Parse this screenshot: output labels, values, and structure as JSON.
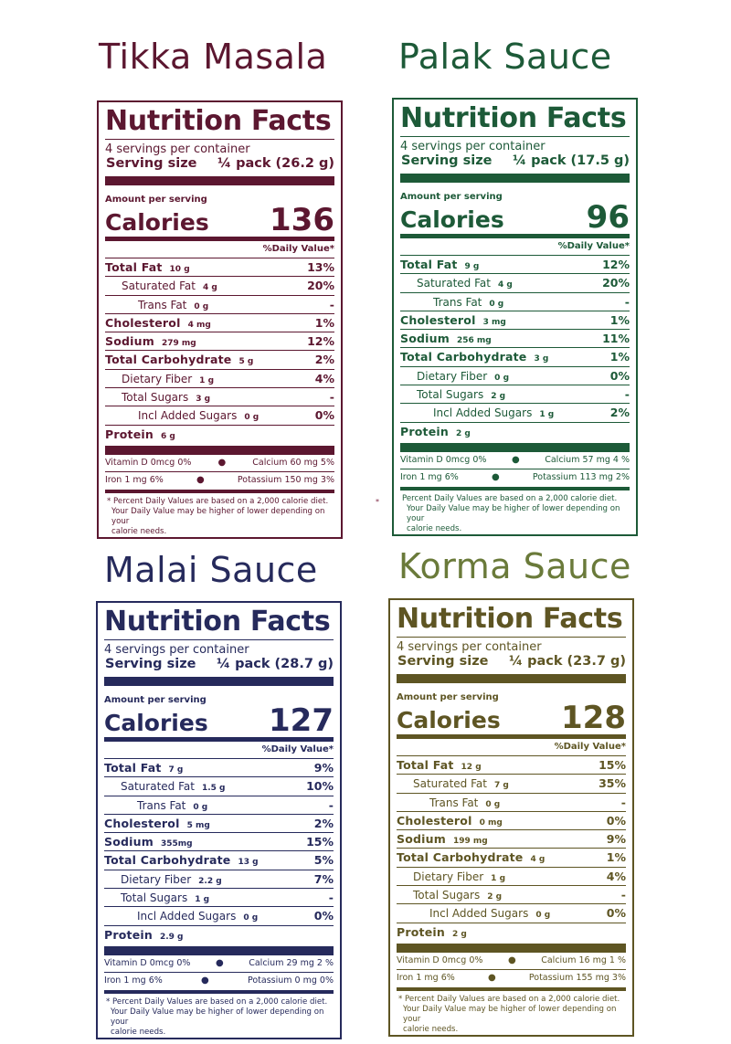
{
  "labels": [
    {
      "title": "Tikka Masala",
      "color": "#5c1730",
      "heading": "Nutrition Facts",
      "servings": "4 servings per container",
      "serving_size_label": "Serving size",
      "serving_size_value": "¼ pack (26.2 g)",
      "amount_per_serving": "Amount per serving",
      "calories_label": "Calories",
      "calories": "136",
      "daily_value_head": "%Daily Value*",
      "rows": [
        {
          "name": "Total Fat",
          "amount": "10 g",
          "pct": "13%"
        },
        {
          "name": "Saturated Fat",
          "amount": "4 g",
          "pct": "20%"
        },
        {
          "name": "Trans Fat",
          "amount": "0 g",
          "pct": "-"
        },
        {
          "name": "Cholesterol",
          "amount": "4 mg",
          "pct": "1%"
        },
        {
          "name": "Sodium",
          "amount": "279 mg",
          "pct": "12%"
        },
        {
          "name": "Total Carbohydrate",
          "amount": "5 g",
          "pct": "2%"
        },
        {
          "name": "Dietary Fiber",
          "amount": "1 g",
          "pct": "4%"
        },
        {
          "name": "Total Sugars",
          "amount": "3 g",
          "pct": "-"
        },
        {
          "name": "Incl Added Sugars",
          "amount": "0 g",
          "pct": "0%"
        },
        {
          "name": "Protein",
          "amount": "6 g",
          "pct": ""
        }
      ],
      "vit_d": "Vitamin D 0mcg 0%",
      "calcium": "Calcium 60 mg 5%",
      "iron": "Iron 1 mg 6%",
      "potassium": "Potassium 150 mg 3%",
      "footnote_1": "* Percent Daily Values are  based on a 2,000 calorie diet.",
      "footnote_2": "Your Daily Value may be higher of lower depending on your",
      "footnote_3": "calorie needs."
    },
    {
      "title": "Palak Sauce",
      "color": "#1d5a38",
      "heading": "Nutrition Facts",
      "servings": "4 servings per container",
      "serving_size_label": "Serving size",
      "serving_size_value": "¼ pack (17.5 g)",
      "amount_per_serving": "Amount per serving",
      "calories_label": "Calories",
      "calories": "96",
      "daily_value_head": "%Daily Value*",
      "rows": [
        {
          "name": "Total Fat",
          "amount": "9 g",
          "pct": "12%"
        },
        {
          "name": "Saturated Fat",
          "amount": "4 g",
          "pct": "20%"
        },
        {
          "name": "Trans Fat",
          "amount": "0 g",
          "pct": "-"
        },
        {
          "name": "Cholesterol",
          "amount": "3 mg",
          "pct": "1%"
        },
        {
          "name": "Sodium",
          "amount": "256 mg",
          "pct": "11%"
        },
        {
          "name": "Total Carbohydrate",
          "amount": "3 g",
          "pct": "1%"
        },
        {
          "name": "Dietary Fiber",
          "amount": "0 g",
          "pct": "0%"
        },
        {
          "name": "Total Sugars",
          "amount": "2 g",
          "pct": "-"
        },
        {
          "name": "Incl Added Sugars",
          "amount": "1 g",
          "pct": "2%"
        },
        {
          "name": "Protein",
          "amount": "2 g",
          "pct": ""
        }
      ],
      "vit_d": "Vitamin D 0mcg 0%",
      "calcium": "Calcium 57 mg 4 %",
      "iron": "Iron 1 mg 6%",
      "potassium": "Potassium 113 mg 2%",
      "footnote_1": "Percent Daily Values are  based on a 2,000 calorie diet.",
      "footnote_2": "Your Daily Value may be higher of lower depending on your",
      "footnote_3": "calorie needs."
    },
    {
      "title": "Malai Sauce",
      "color": "#262a5c",
      "heading": "Nutrition Facts",
      "servings": "4 servings per container",
      "serving_size_label": "Serving size",
      "serving_size_value": "¼ pack (28.7 g)",
      "amount_per_serving": "Amount per serving",
      "calories_label": "Calories",
      "calories": "127",
      "daily_value_head": "%Daily Value*",
      "rows": [
        {
          "name": "Total Fat",
          "amount": "7 g",
          "pct": "9%"
        },
        {
          "name": "Saturated Fat",
          "amount": "1.5 g",
          "pct": "10%"
        },
        {
          "name": "Trans Fat",
          "amount": "0 g",
          "pct": "-"
        },
        {
          "name": "Cholesterol",
          "amount": "5 mg",
          "pct": "2%"
        },
        {
          "name": "Sodium",
          "amount": "355mg",
          "pct": "15%"
        },
        {
          "name": "Total Carbohydrate",
          "amount": "13 g",
          "pct": "5%"
        },
        {
          "name": "Dietary Fiber",
          "amount": "2.2 g",
          "pct": "7%"
        },
        {
          "name": "Total Sugars",
          "amount": "1 g",
          "pct": "-"
        },
        {
          "name": "Incl Added Sugars",
          "amount": "0 g",
          "pct": "0%"
        },
        {
          "name": "Protein",
          "amount": "2.9 g",
          "pct": ""
        }
      ],
      "vit_d": "Vitamin D 0mcg 0%",
      "calcium": "Calcium 29 mg 2 %",
      "iron": "Iron 1 mg 6%",
      "potassium": "Potassium 0 mg 0%",
      "footnote_1": "* Percent Daily Values are  based on a 2,000 calorie diet.",
      "footnote_2": "Your Daily Value may be higher of lower depending on your",
      "footnote_3": "calorie needs."
    },
    {
      "title": "Korma Sauce",
      "color": "#5e5523",
      "title_color": "#6a7a3a",
      "heading": "Nutrition Facts",
      "servings": "4 servings per container",
      "serving_size_label": "Serving size",
      "serving_size_value": "¼ pack (23.7 g)",
      "amount_per_serving": "Amount per serving",
      "calories_label": "Calories",
      "calories": "128",
      "daily_value_head": "%Daily Value*",
      "rows": [
        {
          "name": "Total Fat",
          "amount": "12 g",
          "pct": "15%"
        },
        {
          "name": "Saturated Fat",
          "amount": "7 g",
          "pct": "35%"
        },
        {
          "name": "Trans Fat",
          "amount": "0 g",
          "pct": "-"
        },
        {
          "name": "Cholesterol",
          "amount": "0 mg",
          "pct": "0%"
        },
        {
          "name": "Sodium",
          "amount": "199 mg",
          "pct": "9%"
        },
        {
          "name": "Total Carbohydrate",
          "amount": "4 g",
          "pct": "1%"
        },
        {
          "name": "Dietary Fiber",
          "amount": "1 g",
          "pct": "4%"
        },
        {
          "name": "Total Sugars",
          "amount": "2 g",
          "pct": "-"
        },
        {
          "name": "Incl Added Sugars",
          "amount": "0 g",
          "pct": "0%"
        },
        {
          "name": "Protein",
          "amount": "2 g",
          "pct": ""
        }
      ],
      "vit_d": "Vitamin D 0mcg 0%",
      "calcium": "Calcium 16 mg 1 %",
      "iron": "Iron 1 mg 6%",
      "potassium": "Potassium 155 mg 3%",
      "footnote_1": "* Percent Daily Values are  based on a 2,000 calorie diet.",
      "footnote_2": "Your Daily Value may be higher of lower depending on your",
      "footnote_3": "calorie needs."
    }
  ],
  "stray_mark": "*"
}
